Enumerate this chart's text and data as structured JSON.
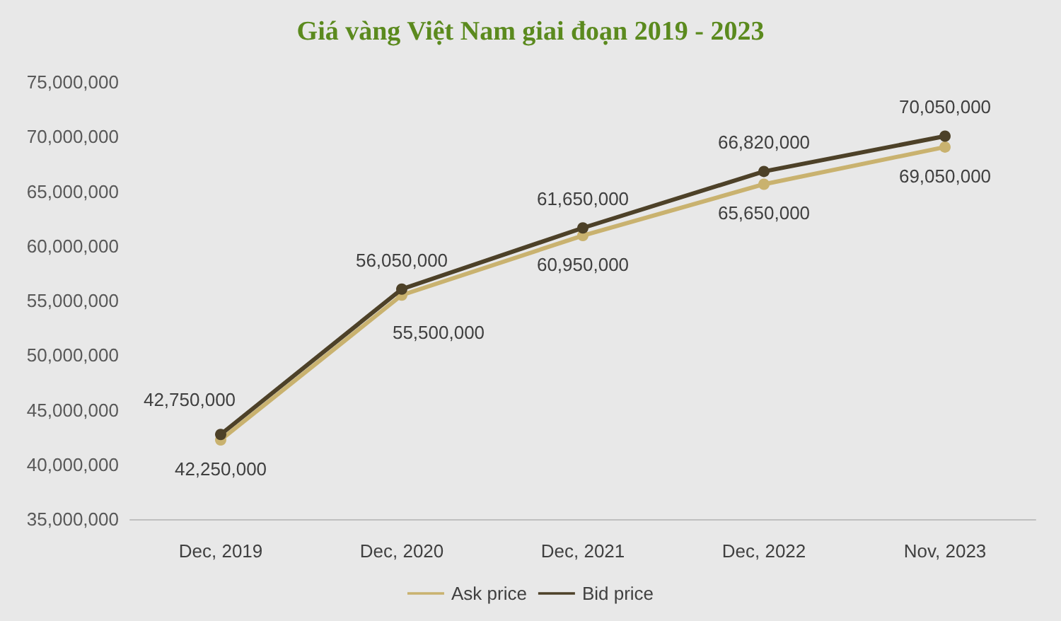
{
  "chart_data": {
    "type": "line",
    "title": "Giá vàng Việt Nam giai đoạn 2019 - 2023",
    "categories": [
      "Dec, 2019",
      "Dec, 2020",
      "Dec, 2021",
      "Dec, 2022",
      "Nov, 2023"
    ],
    "series": [
      {
        "name": "Ask price",
        "color": "#c9b26f",
        "values": [
          42250000,
          55500000,
          60950000,
          65650000,
          69050000
        ],
        "value_labels": [
          "42,250,000",
          "55,500,000",
          "60,950,000",
          "65,650,000",
          "69,050,000"
        ]
      },
      {
        "name": "Bid price",
        "color": "#4d4128",
        "values": [
          42750000,
          56050000,
          61650000,
          66820000,
          70050000
        ],
        "value_labels": [
          "42,750,000",
          "56,050,000",
          "61,650,000",
          "66,820,000",
          "70,050,000"
        ]
      }
    ],
    "ylim": [
      35000000,
      75000000
    ],
    "yticks": [
      {
        "value": 35000000,
        "label": "35,000,000"
      },
      {
        "value": 40000000,
        "label": "40,000,000"
      },
      {
        "value": 45000000,
        "label": "45,000,000"
      },
      {
        "value": 50000000,
        "label": "50,000,000"
      },
      {
        "value": 55000000,
        "label": "55,000,000"
      },
      {
        "value": 60000000,
        "label": "60,000,000"
      },
      {
        "value": 65000000,
        "label": "65,000,000"
      },
      {
        "value": 70000000,
        "label": "70,000,000"
      },
      {
        "value": 75000000,
        "label": "75,000,000"
      }
    ],
    "grid": false,
    "legend": "bottom",
    "marker": "circle",
    "line_style": "solid"
  }
}
